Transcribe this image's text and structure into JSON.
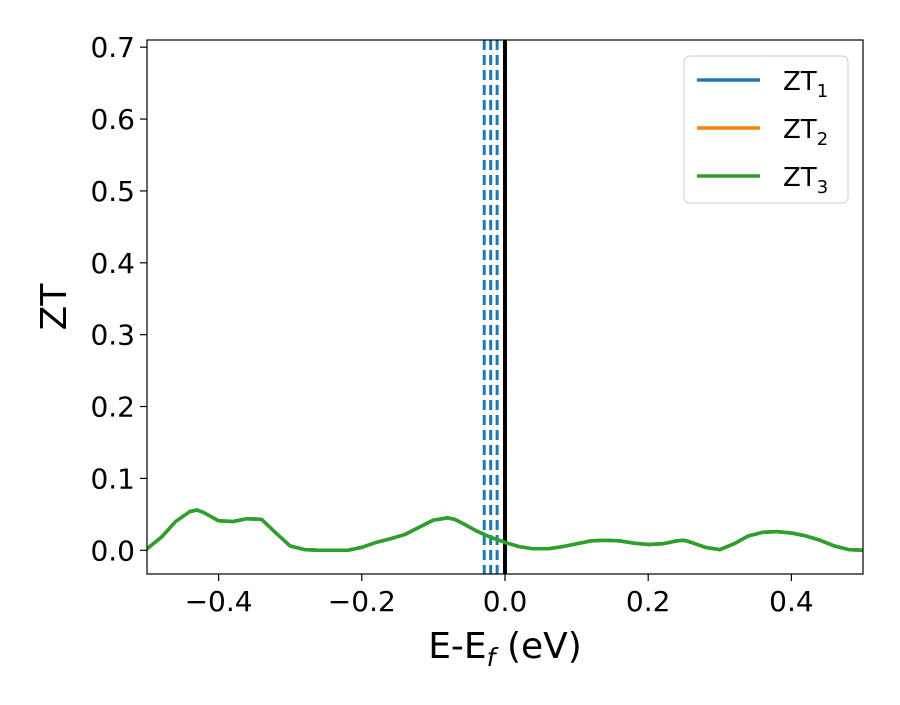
{
  "chart_data": {
    "type": "line",
    "xlabel": "E-E",
    "xlabel_sub": "f",
    "xlabel_unit": "(eV)",
    "ylabel": "ZT",
    "xlim": [
      -0.5,
      0.5
    ],
    "ylim": [
      -0.033,
      0.71
    ],
    "grid": false,
    "legend_position": "top-right",
    "x_ticks": [
      -0.4,
      -0.2,
      0.0,
      0.2,
      0.4
    ],
    "x_tick_labels": [
      "−0.4",
      "−0.2",
      "0.0",
      "0.2",
      "0.4"
    ],
    "y_ticks": [
      0.0,
      0.1,
      0.2,
      0.3,
      0.4,
      0.5,
      0.6,
      0.7
    ],
    "y_tick_labels": [
      "0.0",
      "0.1",
      "0.2",
      "0.3",
      "0.4",
      "0.5",
      "0.6",
      "0.7"
    ],
    "series": [
      {
        "name": "ZT",
        "sub": "1",
        "color": "#1f77b4",
        "x": [
          -0.5,
          -0.48,
          -0.46,
          -0.44,
          -0.43,
          -0.42,
          -0.4,
          -0.38,
          -0.36,
          -0.34,
          -0.32,
          -0.3,
          -0.28,
          -0.26,
          -0.24,
          -0.22,
          -0.2,
          -0.18,
          -0.16,
          -0.14,
          -0.12,
          -0.1,
          -0.08,
          -0.07,
          -0.06,
          -0.04,
          -0.02,
          0.0,
          0.02,
          0.04,
          0.06,
          0.08,
          0.1,
          0.12,
          0.14,
          0.16,
          0.18,
          0.2,
          0.22,
          0.24,
          0.25,
          0.26,
          0.28,
          0.3,
          0.32,
          0.34,
          0.36,
          0.38,
          0.4,
          0.42,
          0.44,
          0.46,
          0.48,
          0.5
        ],
        "y": [
          0.002,
          0.018,
          0.04,
          0.054,
          0.056,
          0.052,
          0.041,
          0.04,
          0.044,
          0.043,
          0.024,
          0.006,
          0.001,
          0.0,
          0.0,
          0.0,
          0.004,
          0.011,
          0.016,
          0.022,
          0.032,
          0.042,
          0.045,
          0.043,
          0.038,
          0.027,
          0.018,
          0.011,
          0.005,
          0.002,
          0.002,
          0.005,
          0.009,
          0.013,
          0.014,
          0.013,
          0.01,
          0.008,
          0.009,
          0.013,
          0.014,
          0.011,
          0.004,
          0.001,
          0.009,
          0.02,
          0.025,
          0.026,
          0.024,
          0.02,
          0.014,
          0.006,
          0.001,
          0.0
        ]
      },
      {
        "name": "ZT",
        "sub": "2",
        "color": "#ff7f0e",
        "x": [
          -0.5,
          -0.48,
          -0.46,
          -0.44,
          -0.43,
          -0.42,
          -0.4,
          -0.38,
          -0.36,
          -0.34,
          -0.32,
          -0.3,
          -0.28,
          -0.26,
          -0.24,
          -0.22,
          -0.2,
          -0.18,
          -0.16,
          -0.14,
          -0.12,
          -0.1,
          -0.08,
          -0.07,
          -0.06,
          -0.04,
          -0.02,
          0.0,
          0.02,
          0.04,
          0.06,
          0.08,
          0.1,
          0.12,
          0.14,
          0.16,
          0.18,
          0.2,
          0.22,
          0.24,
          0.25,
          0.26,
          0.28,
          0.3,
          0.32,
          0.34,
          0.36,
          0.38,
          0.4,
          0.42,
          0.44,
          0.46,
          0.48,
          0.5
        ],
        "y": [
          0.002,
          0.018,
          0.04,
          0.054,
          0.056,
          0.052,
          0.041,
          0.04,
          0.044,
          0.043,
          0.024,
          0.006,
          0.001,
          0.0,
          0.0,
          0.0,
          0.004,
          0.011,
          0.016,
          0.022,
          0.032,
          0.042,
          0.045,
          0.043,
          0.038,
          0.027,
          0.018,
          0.011,
          0.005,
          0.002,
          0.002,
          0.005,
          0.009,
          0.013,
          0.014,
          0.013,
          0.01,
          0.008,
          0.009,
          0.013,
          0.014,
          0.011,
          0.004,
          0.001,
          0.009,
          0.02,
          0.025,
          0.026,
          0.024,
          0.02,
          0.014,
          0.006,
          0.001,
          0.0
        ]
      },
      {
        "name": "ZT",
        "sub": "3",
        "color": "#2ca02c",
        "x": [
          -0.5,
          -0.48,
          -0.46,
          -0.44,
          -0.43,
          -0.42,
          -0.4,
          -0.38,
          -0.36,
          -0.34,
          -0.32,
          -0.3,
          -0.28,
          -0.26,
          -0.24,
          -0.22,
          -0.2,
          -0.18,
          -0.16,
          -0.14,
          -0.12,
          -0.1,
          -0.08,
          -0.07,
          -0.06,
          -0.04,
          -0.02,
          0.0,
          0.02,
          0.04,
          0.06,
          0.08,
          0.1,
          0.12,
          0.14,
          0.16,
          0.18,
          0.2,
          0.22,
          0.24,
          0.25,
          0.26,
          0.28,
          0.3,
          0.32,
          0.34,
          0.36,
          0.38,
          0.4,
          0.42,
          0.44,
          0.46,
          0.48,
          0.5
        ],
        "y": [
          0.002,
          0.018,
          0.04,
          0.054,
          0.056,
          0.052,
          0.041,
          0.04,
          0.044,
          0.043,
          0.024,
          0.006,
          0.001,
          0.0,
          0.0,
          0.0,
          0.004,
          0.011,
          0.016,
          0.022,
          0.032,
          0.042,
          0.045,
          0.043,
          0.038,
          0.027,
          0.018,
          0.011,
          0.005,
          0.002,
          0.002,
          0.005,
          0.009,
          0.013,
          0.014,
          0.013,
          0.01,
          0.008,
          0.009,
          0.013,
          0.014,
          0.011,
          0.004,
          0.001,
          0.009,
          0.02,
          0.025,
          0.026,
          0.024,
          0.02,
          0.014,
          0.006,
          0.001,
          0.0
        ]
      }
    ],
    "vertical_lines": [
      {
        "x": -0.029,
        "color": "#1f77b4",
        "style": "dashed"
      },
      {
        "x": -0.02,
        "color": "#1f77b4",
        "style": "dashed"
      },
      {
        "x": -0.011,
        "color": "#1f77b4",
        "style": "dashed"
      },
      {
        "x": 0.0,
        "color": "#000000",
        "style": "solid"
      }
    ]
  }
}
